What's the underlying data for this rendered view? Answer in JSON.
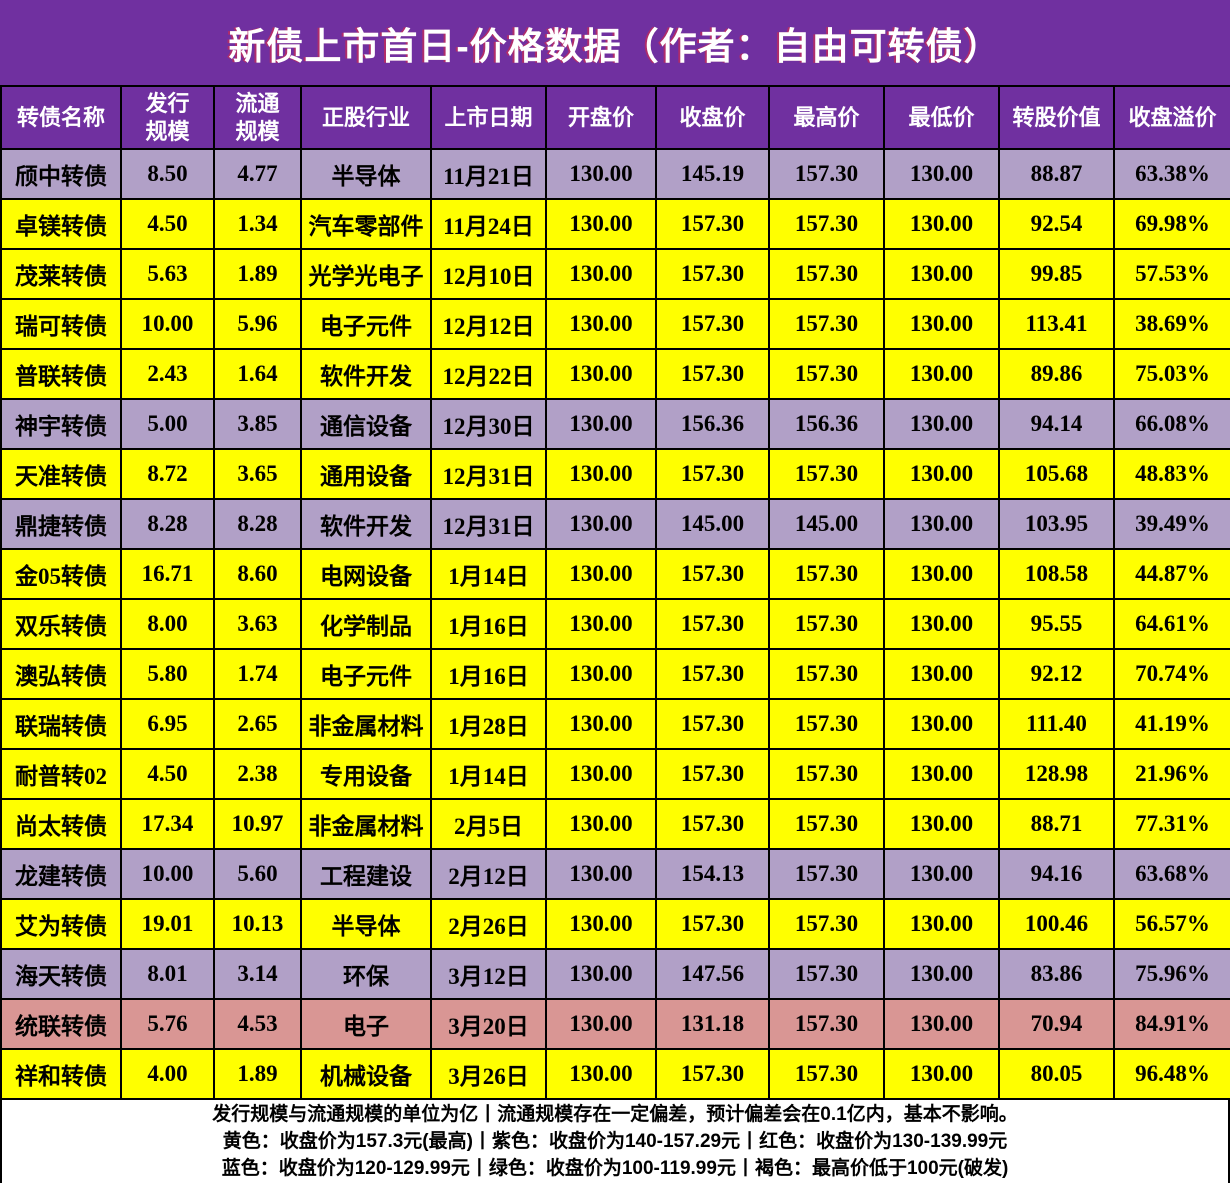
{
  "title": "新债上市首日-价格数据（作者：自由可转债）",
  "colors": {
    "header_bg": "#7030A0",
    "title_text": "#FFFFFF",
    "row_yellow": "#FFFF00",
    "row_purple": "#B1A0C7",
    "row_red": "#D99694",
    "border": "#000000"
  },
  "chart_data": {
    "type": "table",
    "title": "新债上市首日-价格数据（作者：自由可转债）",
    "columns": [
      "转债名称",
      "发行\n规模",
      "流通\n规模",
      "正股行业",
      "上市日期",
      "开盘价",
      "收盘价",
      "最高价",
      "最低价",
      "转股价值",
      "收盘溢价"
    ],
    "rows": [
      [
        "颀中转债",
        "8.50",
        "4.77",
        "半导体",
        "11月21日",
        "130.00",
        "145.19",
        "157.30",
        "130.00",
        "88.87",
        "63.38%"
      ],
      [
        "卓镁转债",
        "4.50",
        "1.34",
        "汽车零部件",
        "11月24日",
        "130.00",
        "157.30",
        "157.30",
        "130.00",
        "92.54",
        "69.98%"
      ],
      [
        "茂莱转债",
        "5.63",
        "1.89",
        "光学光电子",
        "12月10日",
        "130.00",
        "157.30",
        "157.30",
        "130.00",
        "99.85",
        "57.53%"
      ],
      [
        "瑞可转债",
        "10.00",
        "5.96",
        "电子元件",
        "12月12日",
        "130.00",
        "157.30",
        "157.30",
        "130.00",
        "113.41",
        "38.69%"
      ],
      [
        "普联转债",
        "2.43",
        "1.64",
        "软件开发",
        "12月22日",
        "130.00",
        "157.30",
        "157.30",
        "130.00",
        "89.86",
        "75.03%"
      ],
      [
        "神宇转债",
        "5.00",
        "3.85",
        "通信设备",
        "12月30日",
        "130.00",
        "156.36",
        "156.36",
        "130.00",
        "94.14",
        "66.08%"
      ],
      [
        "天准转债",
        "8.72",
        "3.65",
        "通用设备",
        "12月31日",
        "130.00",
        "157.30",
        "157.30",
        "130.00",
        "105.68",
        "48.83%"
      ],
      [
        "鼎捷转债",
        "8.28",
        "8.28",
        "软件开发",
        "12月31日",
        "130.00",
        "145.00",
        "145.00",
        "130.00",
        "103.95",
        "39.49%"
      ],
      [
        "金05转债",
        "16.71",
        "8.60",
        "电网设备",
        "1月14日",
        "130.00",
        "157.30",
        "157.30",
        "130.00",
        "108.58",
        "44.87%"
      ],
      [
        "双乐转债",
        "8.00",
        "3.63",
        "化学制品",
        "1月16日",
        "130.00",
        "157.30",
        "157.30",
        "130.00",
        "95.55",
        "64.61%"
      ],
      [
        "澳弘转债",
        "5.80",
        "1.74",
        "电子元件",
        "1月16日",
        "130.00",
        "157.30",
        "157.30",
        "130.00",
        "92.12",
        "70.74%"
      ],
      [
        "联瑞转债",
        "6.95",
        "2.65",
        "非金属材料",
        "1月28日",
        "130.00",
        "157.30",
        "157.30",
        "130.00",
        "111.40",
        "41.19%"
      ],
      [
        "耐普转02",
        "4.50",
        "2.38",
        "专用设备",
        "1月14日",
        "130.00",
        "157.30",
        "157.30",
        "130.00",
        "128.98",
        "21.96%"
      ],
      [
        "尚太转债",
        "17.34",
        "10.97",
        "非金属材料",
        "2月5日",
        "130.00",
        "157.30",
        "157.30",
        "130.00",
        "88.71",
        "77.31%"
      ],
      [
        "龙建转债",
        "10.00",
        "5.60",
        "工程建设",
        "2月12日",
        "130.00",
        "154.13",
        "157.30",
        "130.00",
        "94.16",
        "63.68%"
      ],
      [
        "艾为转债",
        "19.01",
        "10.13",
        "半导体",
        "2月26日",
        "130.00",
        "157.30",
        "157.30",
        "130.00",
        "100.46",
        "56.57%"
      ],
      [
        "海天转债",
        "8.01",
        "3.14",
        "环保",
        "3月12日",
        "130.00",
        "147.56",
        "157.30",
        "130.00",
        "83.86",
        "75.96%"
      ],
      [
        "统联转债",
        "5.76",
        "4.53",
        "电子",
        "3月20日",
        "130.00",
        "131.18",
        "157.30",
        "130.00",
        "70.94",
        "84.91%"
      ],
      [
        "祥和转债",
        "4.00",
        "1.89",
        "机械设备",
        "3月26日",
        "130.00",
        "157.30",
        "157.30",
        "130.00",
        "80.05",
        "96.48%"
      ]
    ],
    "row_colors": [
      "purple",
      "yellow",
      "yellow",
      "yellow",
      "yellow",
      "purple",
      "yellow",
      "purple",
      "yellow",
      "yellow",
      "yellow",
      "yellow",
      "yellow",
      "yellow",
      "purple",
      "yellow",
      "purple",
      "red",
      "yellow"
    ]
  },
  "footer": {
    "lines": [
      "发行规模与流通规模的单位为亿丨流通规模存在一定偏差，预计偏差会在0.1亿内，基本不影响。",
      "黄色：收盘价为157.3元(最高)丨紫色：收盘价为140-157.29元丨红色：收盘价为130-139.99元",
      "蓝色：收盘价为120-129.99元丨绿色：收盘价为100-119.99元丨褐色：最高价低于100元(破发)"
    ]
  }
}
